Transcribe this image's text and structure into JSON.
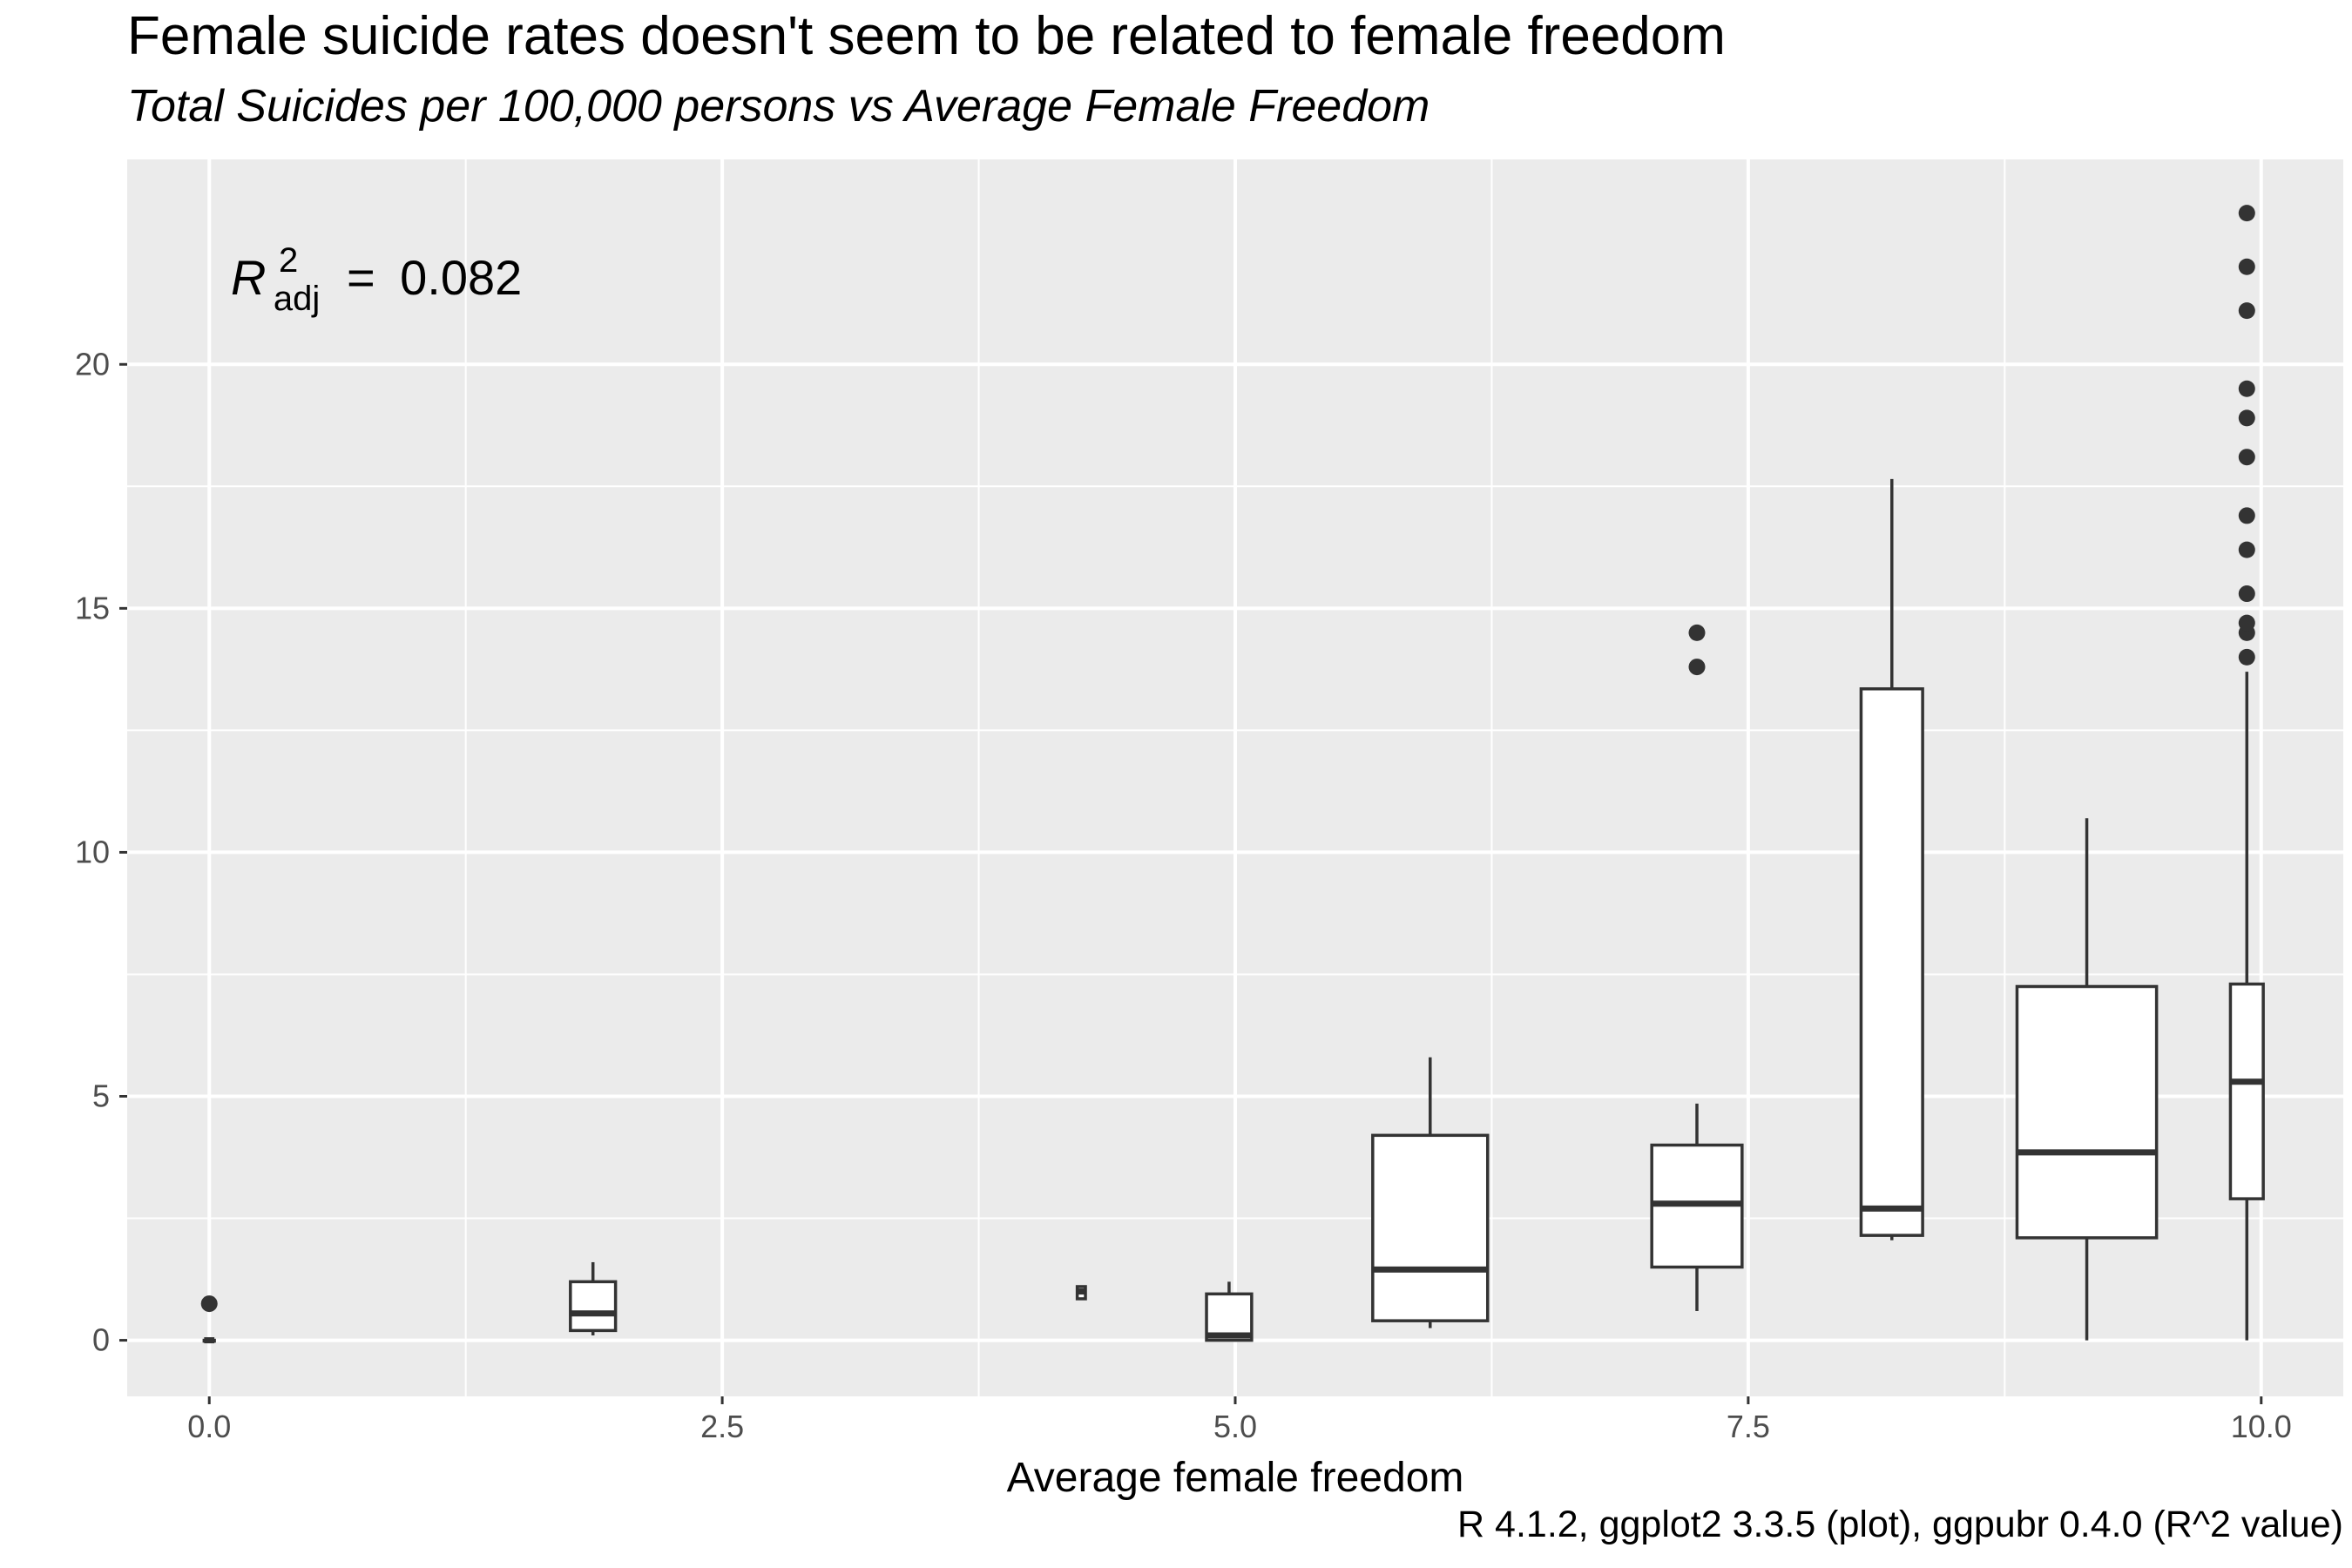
{
  "chart_data": {
    "type": "boxplot",
    "title": "Female suicide rates doesn't seem to be related to female freedom",
    "subtitle": "Total Suicides per 100,000 persons vs Average Female Freedom",
    "xlabel": "Average female freedom",
    "ylabel": "",
    "caption": "R 4.1.2, ggplot2 3.3.5 (plot), ggpubr 0.4.0 (R^2 value)",
    "xlim": [
      -0.4,
      10.4
    ],
    "ylim": [
      -1.15,
      24.2
    ],
    "x_ticks": [
      0,
      2.5,
      5,
      7.5,
      10
    ],
    "x_tick_labels": [
      "0.0",
      "2.5",
      "5.0",
      "7.5",
      "10.0"
    ],
    "y_ticks": [
      0,
      5,
      10,
      15,
      20
    ],
    "y_tick_labels": [
      "0",
      "5",
      "10",
      "15",
      "20"
    ],
    "grid": true,
    "annotation": {
      "symbol": "R",
      "superscript": "2",
      "subscript": "adj",
      "equals": "=",
      "value": "0.082"
    },
    "boxes": [
      {
        "x": 0.0,
        "width": 0.05,
        "whisker_low": 0.0,
        "q1": 0.0,
        "median": 0.0,
        "q3": 0.0,
        "whisker_high": 0.0,
        "outliers": [
          0.75
        ]
      },
      {
        "x": 1.87,
        "width": 0.22,
        "whisker_low": 0.1,
        "q1": 0.2,
        "median": 0.55,
        "q3": 1.2,
        "whisker_high": 1.6,
        "outliers": []
      },
      {
        "x": 4.25,
        "width": 0.04,
        "whisker_low": 0.85,
        "q1": 0.85,
        "median": 1.0,
        "q3": 1.1,
        "whisker_high": 1.1,
        "outliers": []
      },
      {
        "x": 4.97,
        "width": 0.22,
        "whisker_low": 0.0,
        "q1": 0.0,
        "median": 0.1,
        "q3": 0.95,
        "whisker_high": 1.2,
        "outliers": []
      },
      {
        "x": 5.95,
        "width": 0.56,
        "whisker_low": 0.25,
        "q1": 0.4,
        "median": 1.45,
        "q3": 4.2,
        "whisker_high": 5.8,
        "outliers": []
      },
      {
        "x": 7.25,
        "width": 0.44,
        "whisker_low": 0.6,
        "q1": 1.5,
        "median": 2.8,
        "q3": 4.0,
        "whisker_high": 4.85,
        "outliers": [
          13.8,
          14.5
        ]
      },
      {
        "x": 8.2,
        "width": 0.3,
        "whisker_low": 2.05,
        "q1": 2.15,
        "median": 2.7,
        "q3": 13.35,
        "whisker_high": 17.65,
        "outliers": []
      },
      {
        "x": 9.15,
        "width": 0.68,
        "whisker_low": 0.0,
        "q1": 2.1,
        "median": 3.85,
        "q3": 7.25,
        "whisker_high": 10.7,
        "outliers": []
      },
      {
        "x": 9.93,
        "width": 0.16,
        "whisker_low": 0.0,
        "q1": 2.9,
        "median": 5.3,
        "q3": 7.3,
        "whisker_high": 13.7,
        "outliers": [
          14.0,
          14.5,
          14.7,
          15.3,
          16.2,
          16.9,
          18.1,
          18.9,
          19.5,
          21.1,
          22.0,
          23.1
        ]
      }
    ]
  }
}
